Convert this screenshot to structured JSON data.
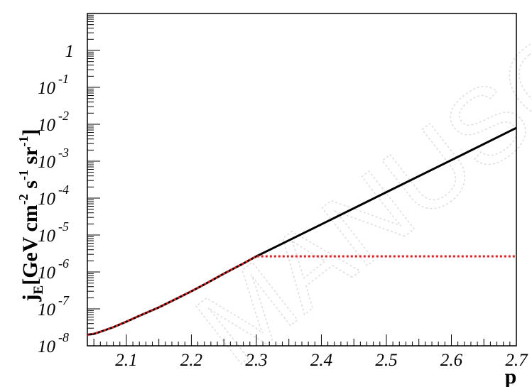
{
  "watermark": "MANUSC",
  "chart_data": {
    "type": "line",
    "xlabel": "p",
    "ylabel": {
      "main": "j",
      "sub": "E",
      "units_parts": [
        "[GeV cm",
        "-2",
        " s",
        "-1",
        " sr",
        "-1",
        "]"
      ]
    },
    "xlim": [
      2.04,
      2.7
    ],
    "ylim": [
      1e-08,
      10
    ],
    "yscale": "log",
    "x_tick_labels": [
      "2.1",
      "2.2",
      "2.3",
      "2.4",
      "2.5",
      "2.6",
      "2.7"
    ],
    "y_tick_labels": [
      {
        "base": "10",
        "exp": "-8"
      },
      {
        "base": "10",
        "exp": "-7"
      },
      {
        "base": "10",
        "exp": "-6"
      },
      {
        "base": "10",
        "exp": "-5"
      },
      {
        "base": "10",
        "exp": "-4"
      },
      {
        "base": "10",
        "exp": "-3"
      },
      {
        "base": "10",
        "exp": "-2"
      },
      {
        "base": "10",
        "exp": "-1"
      },
      {
        "base": "",
        "exp": "1"
      }
    ],
    "series": [
      {
        "color": "#000000",
        "style": "solid",
        "x": [
          2.04,
          2.05,
          2.06,
          2.08,
          2.1,
          2.12,
          2.15,
          2.18,
          2.2,
          2.22,
          2.25,
          2.28,
          2.3,
          2.4,
          2.5,
          2.6,
          2.7
        ],
        "y": [
          2e-08,
          2.1e-08,
          2.4e-08,
          3.2e-08,
          4.5e-08,
          6.5e-08,
          1.1e-07,
          2e-07,
          3e-07,
          4.6e-07,
          9e-07,
          1.7e-06,
          2.65e-06,
          1.95e-05,
          0.000145,
          0.00107,
          0.008
        ]
      },
      {
        "color": "#e01e1e",
        "style": "dotted",
        "x": [
          2.04,
          2.05,
          2.06,
          2.08,
          2.1,
          2.12,
          2.15,
          2.18,
          2.2,
          2.22,
          2.25,
          2.28,
          2.3,
          2.4,
          2.5,
          2.6,
          2.7
        ],
        "y": [
          2e-08,
          2.1e-08,
          2.4e-08,
          3.2e-08,
          4.5e-08,
          6.5e-08,
          1.1e-07,
          2e-07,
          3e-07,
          4.6e-07,
          9e-07,
          1.7e-06,
          2.65e-06,
          2.65e-06,
          2.65e-06,
          2.65e-06,
          2.65e-06
        ]
      }
    ]
  }
}
